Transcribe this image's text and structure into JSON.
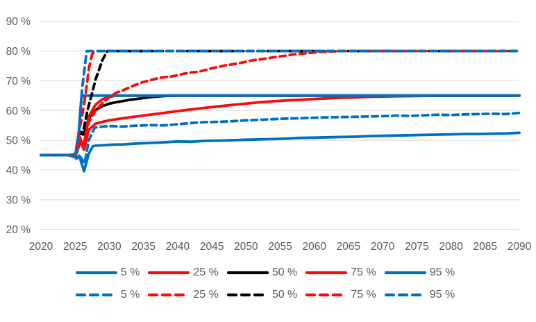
{
  "chart_data": {
    "type": "line",
    "title": "",
    "xlabel": "",
    "ylabel": "",
    "xlim": [
      2020,
      2090
    ],
    "ylim": [
      20,
      90
    ],
    "grid": "horizontal",
    "colors": {
      "blue": "#0070C0",
      "red": "#FA0A0A",
      "black": "#000000",
      "axis_text": "#595959",
      "gridline": "#D9D9D9"
    },
    "y_ticks": [
      {
        "value": 90,
        "label": "90 %"
      },
      {
        "value": 80,
        "label": "80 %"
      },
      {
        "value": 70,
        "label": "70 %"
      },
      {
        "value": 60,
        "label": "60 %"
      },
      {
        "value": 50,
        "label": "50 %"
      },
      {
        "value": 40,
        "label": "40 %"
      },
      {
        "value": 30,
        "label": "30 %"
      },
      {
        "value": 20,
        "label": "20 %"
      }
    ],
    "x_ticks": [
      {
        "value": 2020,
        "label": "2020"
      },
      {
        "value": 2025,
        "label": "2025"
      },
      {
        "value": 2030,
        "label": "2030"
      },
      {
        "value": 2035,
        "label": "2035"
      },
      {
        "value": 2040,
        "label": "2040"
      },
      {
        "value": 2045,
        "label": "2045"
      },
      {
        "value": 2050,
        "label": "2050"
      },
      {
        "value": 2055,
        "label": "2055"
      },
      {
        "value": 2060,
        "label": "2060"
      },
      {
        "value": 2065,
        "label": "2065"
      },
      {
        "value": 2070,
        "label": "2070"
      },
      {
        "value": 2075,
        "label": "2075"
      },
      {
        "value": 2080,
        "label": "2080"
      },
      {
        "value": 2085,
        "label": "2085"
      },
      {
        "value": 2090,
        "label": "2090"
      }
    ],
    "series": [
      {
        "id": "solid-50",
        "label": "50 %",
        "style": "solid",
        "color": "#000000",
        "points": [
          [
            2020,
            45
          ],
          [
            2022,
            45
          ],
          [
            2024,
            45
          ],
          [
            2025,
            44.5
          ],
          [
            2025.6,
            52
          ],
          [
            2026,
            52.8
          ],
          [
            2026.3,
            52
          ],
          [
            2027,
            57.5
          ],
          [
            2028,
            60.2
          ],
          [
            2029,
            61.5
          ],
          [
            2030,
            62.3
          ],
          [
            2031,
            62.8
          ],
          [
            2032,
            63.2
          ],
          [
            2033,
            63.6
          ],
          [
            2034,
            63.9
          ],
          [
            2035,
            64.2
          ],
          [
            2036,
            64.5
          ],
          [
            2037,
            64.7
          ],
          [
            2038,
            64.9
          ],
          [
            2039,
            65
          ],
          [
            2090,
            65
          ]
        ]
      },
      {
        "id": "solid-75",
        "label": "75 %",
        "style": "solid",
        "color": "#FA0A0A",
        "points": [
          [
            2020,
            45
          ],
          [
            2022,
            45
          ],
          [
            2024,
            45
          ],
          [
            2025,
            44.8
          ],
          [
            2025.7,
            51
          ],
          [
            2026.2,
            47.5
          ],
          [
            2027,
            58
          ],
          [
            2028,
            62
          ],
          [
            2029,
            63.8
          ],
          [
            2030,
            64.6
          ],
          [
            2031,
            65
          ],
          [
            2090,
            65
          ]
        ]
      },
      {
        "id": "solid-25",
        "label": "25 %",
        "style": "solid",
        "color": "#FA0A0A",
        "points": [
          [
            2020,
            45
          ],
          [
            2022,
            45
          ],
          [
            2024,
            45
          ],
          [
            2025,
            44.5
          ],
          [
            2025.8,
            49.5
          ],
          [
            2026.3,
            46.8
          ],
          [
            2027,
            53.5
          ],
          [
            2028,
            55.6
          ],
          [
            2029,
            56.2
          ],
          [
            2030,
            56.7
          ],
          [
            2032,
            57.4
          ],
          [
            2034,
            58
          ],
          [
            2036,
            58.6
          ],
          [
            2038,
            59.2
          ],
          [
            2040,
            59.8
          ],
          [
            2042,
            60.4
          ],
          [
            2044,
            60.9
          ],
          [
            2046,
            61.4
          ],
          [
            2048,
            61.9
          ],
          [
            2050,
            62.3
          ],
          [
            2052,
            62.8
          ],
          [
            2054,
            63.1
          ],
          [
            2056,
            63.4
          ],
          [
            2058,
            63.6
          ],
          [
            2060,
            63.9
          ],
          [
            2062,
            64.1
          ],
          [
            2064,
            64.3
          ],
          [
            2066,
            64.4
          ],
          [
            2068,
            64.6
          ],
          [
            2070,
            64.7
          ],
          [
            2072,
            64.8
          ],
          [
            2075,
            64.9
          ],
          [
            2078,
            65
          ],
          [
            2090,
            65
          ]
        ]
      },
      {
        "id": "solid-95",
        "label": "95 %",
        "style": "solid",
        "color": "#0070C0",
        "points": [
          [
            2020,
            45
          ],
          [
            2022,
            45
          ],
          [
            2024,
            45
          ],
          [
            2025,
            45.3
          ],
          [
            2025.3,
            46
          ],
          [
            2025.9,
            64
          ],
          [
            2026.2,
            65
          ],
          [
            2090,
            65
          ]
        ]
      },
      {
        "id": "solid-5",
        "label": "5 %",
        "style": "solid",
        "color": "#0070C0",
        "points": [
          [
            2020,
            45
          ],
          [
            2022,
            45
          ],
          [
            2024,
            45
          ],
          [
            2024.8,
            45
          ],
          [
            2025.2,
            43.8
          ],
          [
            2025.6,
            44.8
          ],
          [
            2026.3,
            39.6
          ],
          [
            2027,
            45.5
          ],
          [
            2027.6,
            48
          ],
          [
            2028,
            48.2
          ],
          [
            2029,
            48.3
          ],
          [
            2030,
            48.5
          ],
          [
            2032,
            48.6
          ],
          [
            2034,
            48.9
          ],
          [
            2036,
            49.1
          ],
          [
            2038,
            49.3
          ],
          [
            2040,
            49.6
          ],
          [
            2042,
            49.5
          ],
          [
            2044,
            49.8
          ],
          [
            2046,
            49.9
          ],
          [
            2048,
            50
          ],
          [
            2050,
            50.2
          ],
          [
            2052,
            50.3
          ],
          [
            2054,
            50.4
          ],
          [
            2056,
            50.6
          ],
          [
            2058,
            50.8
          ],
          [
            2060,
            50.9
          ],
          [
            2062,
            51
          ],
          [
            2064,
            51.1
          ],
          [
            2066,
            51.2
          ],
          [
            2068,
            51.4
          ],
          [
            2070,
            51.5
          ],
          [
            2072,
            51.6
          ],
          [
            2074,
            51.7
          ],
          [
            2076,
            51.8
          ],
          [
            2078,
            51.9
          ],
          [
            2080,
            52
          ],
          [
            2082,
            52.1
          ],
          [
            2084,
            52.1
          ],
          [
            2086,
            52.2
          ],
          [
            2088,
            52.3
          ],
          [
            2090,
            52.5
          ]
        ]
      },
      {
        "id": "dashed-50",
        "label": "50 %",
        "style": "dashed",
        "color": "#000000",
        "points": [
          [
            2020,
            45
          ],
          [
            2022,
            45
          ],
          [
            2024,
            45
          ],
          [
            2025,
            44.5
          ],
          [
            2025.6,
            53
          ],
          [
            2026.1,
            52
          ],
          [
            2026.8,
            60
          ],
          [
            2027.5,
            66
          ],
          [
            2028,
            70.5
          ],
          [
            2029,
            77
          ],
          [
            2029.7,
            80
          ],
          [
            2090,
            80
          ]
        ]
      },
      {
        "id": "dashed-75",
        "label": "75 %",
        "style": "dashed",
        "color": "#FA0A0A",
        "points": [
          [
            2020,
            45
          ],
          [
            2022,
            45
          ],
          [
            2024,
            45
          ],
          [
            2025,
            45
          ],
          [
            2025.5,
            52
          ],
          [
            2026,
            58
          ],
          [
            2026.5,
            65
          ],
          [
            2027,
            74
          ],
          [
            2027.5,
            79
          ],
          [
            2028,
            80
          ],
          [
            2090,
            80
          ]
        ]
      },
      {
        "id": "dashed-25",
        "label": "25 %",
        "style": "dashed",
        "color": "#FA0A0A",
        "points": [
          [
            2020,
            45
          ],
          [
            2022,
            45
          ],
          [
            2024,
            45
          ],
          [
            2025,
            44.5
          ],
          [
            2025.8,
            50
          ],
          [
            2026.3,
            48
          ],
          [
            2027,
            56
          ],
          [
            2028,
            60
          ],
          [
            2029,
            62.5
          ],
          [
            2030,
            64.5
          ],
          [
            2031,
            66
          ],
          [
            2032,
            66.8
          ],
          [
            2033,
            67.8
          ],
          [
            2034,
            68.8
          ],
          [
            2035,
            69.6
          ],
          [
            2036,
            70.2
          ],
          [
            2037,
            70.8
          ],
          [
            2038,
            71.2
          ],
          [
            2039,
            71.4
          ],
          [
            2040,
            71.9
          ],
          [
            2041,
            72.4
          ],
          [
            2042,
            72.8
          ],
          [
            2043,
            73
          ],
          [
            2044,
            73.6
          ],
          [
            2045,
            74.2
          ],
          [
            2046,
            74.7
          ],
          [
            2047,
            75.2
          ],
          [
            2048,
            75.5
          ],
          [
            2049,
            75.9
          ],
          [
            2050,
            76.4
          ],
          [
            2051,
            76.9
          ],
          [
            2052,
            77.2
          ],
          [
            2053,
            77.5
          ],
          [
            2054,
            77.9
          ],
          [
            2055,
            78.2
          ],
          [
            2056,
            78.5
          ],
          [
            2057,
            78.9
          ],
          [
            2058,
            79.1
          ],
          [
            2059,
            79.3
          ],
          [
            2060,
            79.5
          ],
          [
            2061,
            79.7
          ],
          [
            2062,
            79.8
          ],
          [
            2063,
            79.9
          ],
          [
            2064,
            80
          ],
          [
            2090,
            80
          ]
        ]
      },
      {
        "id": "dashed-5",
        "label": "5 %",
        "style": "dashed",
        "color": "#0070C0",
        "points": [
          [
            2020,
            45
          ],
          [
            2022,
            45
          ],
          [
            2024,
            45
          ],
          [
            2025,
            44.3
          ],
          [
            2025.7,
            44.6
          ],
          [
            2026.4,
            42.3
          ],
          [
            2027,
            50
          ],
          [
            2027.8,
            54
          ],
          [
            2028,
            54.3
          ],
          [
            2029,
            54.6
          ],
          [
            2030,
            54.8
          ],
          [
            2032,
            54.6
          ],
          [
            2034,
            54.9
          ],
          [
            2036,
            55.1
          ],
          [
            2038,
            55
          ],
          [
            2040,
            55.4
          ],
          [
            2042,
            55.8
          ],
          [
            2044,
            56.1
          ],
          [
            2046,
            56.2
          ],
          [
            2048,
            56.4
          ],
          [
            2050,
            56.7
          ],
          [
            2052,
            56.9
          ],
          [
            2054,
            57.1
          ],
          [
            2056,
            57.3
          ],
          [
            2058,
            57.4
          ],
          [
            2060,
            57.6
          ],
          [
            2062,
            57.7
          ],
          [
            2064,
            57.8
          ],
          [
            2066,
            57.9
          ],
          [
            2068,
            58
          ],
          [
            2070,
            58.1
          ],
          [
            2072,
            58.3
          ],
          [
            2074,
            58.2
          ],
          [
            2076,
            58.4
          ],
          [
            2078,
            58.6
          ],
          [
            2080,
            58.5
          ],
          [
            2082,
            58.7
          ],
          [
            2084,
            58.8
          ],
          [
            2086,
            58.9
          ],
          [
            2088,
            58.8
          ],
          [
            2090,
            59.2
          ]
        ]
      },
      {
        "id": "dashed-95",
        "label": "95 %",
        "style": "dashed",
        "color": "#0070C0",
        "points": [
          [
            2020,
            45
          ],
          [
            2022,
            45
          ],
          [
            2024,
            45
          ],
          [
            2025,
            45.5
          ],
          [
            2025.4,
            48
          ],
          [
            2026,
            67
          ],
          [
            2026.7,
            80
          ],
          [
            2090,
            80
          ]
        ]
      }
    ],
    "legend": {
      "position": "bottom",
      "rows": [
        {
          "style": "solid",
          "entries": [
            {
              "label": "5 %",
              "color": "#0070C0"
            },
            {
              "label": "25 %",
              "color": "#FA0A0A"
            },
            {
              "label": "50 %",
              "color": "#000000"
            },
            {
              "label": "75 %",
              "color": "#FA0A0A"
            },
            {
              "label": "95 %",
              "color": "#0070C0"
            }
          ]
        },
        {
          "style": "dashed",
          "entries": [
            {
              "label": "5 %",
              "color": "#0070C0"
            },
            {
              "label": "25 %",
              "color": "#FA0A0A"
            },
            {
              "label": "50 %",
              "color": "#000000"
            },
            {
              "label": "75 %",
              "color": "#FA0A0A"
            },
            {
              "label": "95 %",
              "color": "#0070C0"
            }
          ]
        }
      ]
    }
  }
}
